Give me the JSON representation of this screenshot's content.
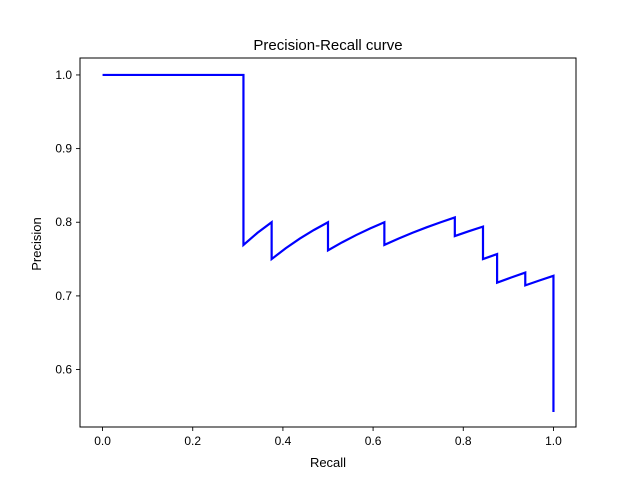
{
  "chart_data": {
    "type": "line",
    "title": "Precision-Recall curve",
    "xlabel": "Recall",
    "ylabel": "Precision",
    "xlim": [
      -0.05,
      1.05
    ],
    "ylim": [
      0.522,
      1.023
    ],
    "xticks": [
      0.0,
      0.2,
      0.4,
      0.6,
      0.8,
      1.0
    ],
    "xtick_labels": [
      "0.0",
      "0.2",
      "0.4",
      "0.6",
      "0.8",
      "1.0"
    ],
    "yticks": [
      0.6,
      0.7,
      0.8,
      0.9,
      1.0
    ],
    "ytick_labels": [
      "0.6",
      "0.7",
      "0.8",
      "0.9",
      "1.0"
    ],
    "grid": false,
    "line_color": "#0000ff",
    "series": [
      {
        "x": [
          0.0,
          0.3125,
          0.3125,
          0.34375,
          0.375,
          0.375,
          0.40625,
          0.4375,
          0.46875,
          0.5,
          0.5,
          0.53125,
          0.5625,
          0.59375,
          0.625,
          0.625,
          0.65625,
          0.6875,
          0.71875,
          0.75,
          0.78125,
          0.78125,
          0.8125,
          0.84375,
          0.84375,
          0.875,
          0.875,
          0.90625,
          0.9375,
          0.9375,
          0.96875,
          1.0,
          1.0
        ],
        "y": [
          1.0,
          1.0,
          0.7692,
          0.7857,
          0.8,
          0.75,
          0.7647,
          0.7778,
          0.7895,
          0.8,
          0.7619,
          0.7727,
          0.7826,
          0.7917,
          0.8,
          0.7692,
          0.7778,
          0.7857,
          0.7931,
          0.8,
          0.8065,
          0.7813,
          0.7879,
          0.7941,
          0.75,
          0.7568,
          0.7179,
          0.725,
          0.7317,
          0.7143,
          0.7209,
          0.7273,
          0.5424
        ]
      }
    ]
  }
}
